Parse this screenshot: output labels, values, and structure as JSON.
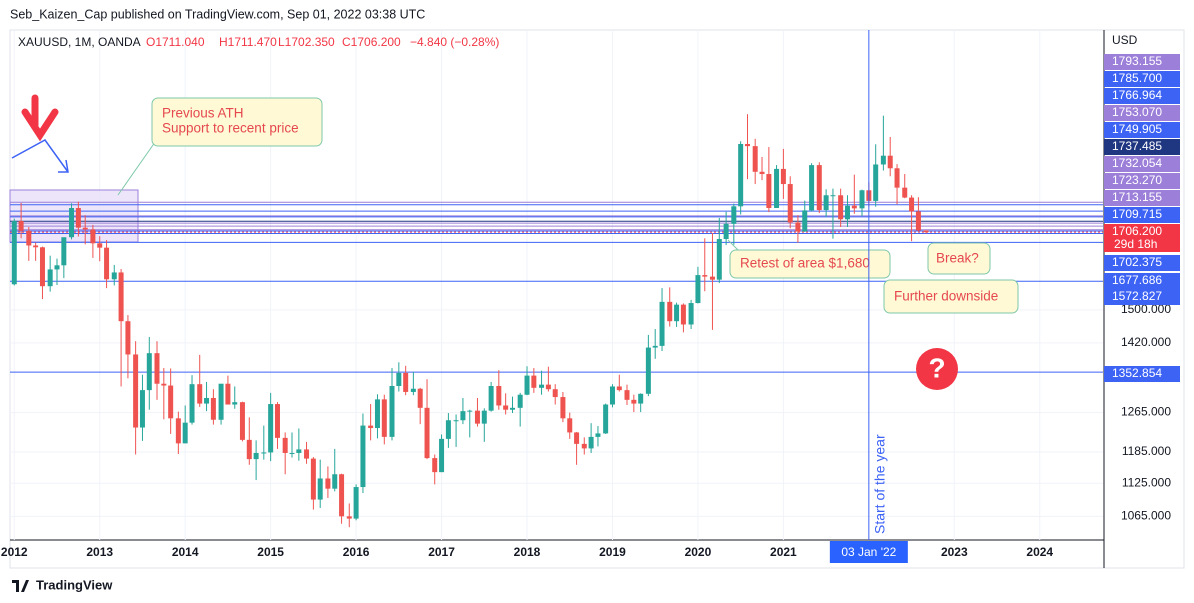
{
  "chart_data": {
    "type": "candlestick",
    "published": "Seb_Kaizen_Cap published on TradingView.com, Sep 01, 2022 03:38 UTC",
    "symbol": "XAUUSD, 1M, OANDA",
    "ohlc_legend": [
      "O1711.040",
      "H1711.470",
      "L1702.350",
      "C1706.200",
      "−4.840 (−0.28%)"
    ],
    "currency": "USD",
    "log_scale": true,
    "grid": true,
    "up_color": "#26a69a",
    "down_color": "#ef5350",
    "x": [
      2012.0,
      2012.08,
      2012.17,
      2012.25,
      2012.33,
      2012.42,
      2012.5,
      2012.58,
      2012.67,
      2012.75,
      2012.83,
      2012.92,
      2013.0,
      2013.08,
      2013.17,
      2013.25,
      2013.33,
      2013.42,
      2013.5,
      2013.58,
      2013.67,
      2013.75,
      2013.83,
      2013.92,
      2014.0,
      2014.08,
      2014.17,
      2014.25,
      2014.33,
      2014.42,
      2014.5,
      2014.58,
      2014.67,
      2014.75,
      2014.83,
      2014.92,
      2015.0,
      2015.08,
      2015.17,
      2015.25,
      2015.33,
      2015.42,
      2015.5,
      2015.58,
      2015.67,
      2015.75,
      2015.83,
      2015.92,
      2016.0,
      2016.08,
      2016.17,
      2016.25,
      2016.33,
      2016.42,
      2016.5,
      2016.58,
      2016.67,
      2016.75,
      2016.83,
      2016.92,
      2017.0,
      2017.08,
      2017.17,
      2017.25,
      2017.33,
      2017.42,
      2017.5,
      2017.58,
      2017.67,
      2017.75,
      2017.83,
      2017.92,
      2018.0,
      2018.08,
      2018.17,
      2018.25,
      2018.33,
      2018.42,
      2018.5,
      2018.58,
      2018.67,
      2018.75,
      2018.83,
      2018.92,
      2019.0,
      2019.08,
      2019.17,
      2019.25,
      2019.33,
      2019.42,
      2019.5,
      2019.58,
      2019.67,
      2019.75,
      2019.83,
      2019.92,
      2020.0,
      2020.08,
      2020.17,
      2020.25,
      2020.33,
      2020.42,
      2020.5,
      2020.58,
      2020.67,
      2020.75,
      2020.83,
      2020.92,
      2021.0,
      2021.08,
      2021.17,
      2021.25,
      2021.33,
      2021.42,
      2021.5,
      2021.58,
      2021.67,
      2021.75,
      2021.83,
      2021.92,
      2022.0,
      2022.08,
      2022.17,
      2022.25,
      2022.33,
      2022.42,
      2022.5,
      2022.58,
      2022.67
    ],
    "open": [
      1565,
      1738,
      1710,
      1669,
      1664,
      1560,
      1604,
      1615,
      1692,
      1776,
      1719,
      1714,
      1675,
      1663,
      1578,
      1596,
      1472,
      1393,
      1234,
      1313,
      1396,
      1327,
      1323,
      1253,
      1202,
      1244,
      1326,
      1284,
      1296,
      1250,
      1327,
      1282,
      1287,
      1209,
      1171,
      1183,
      1184,
      1283,
      1213,
      1183,
      1183,
      1190,
      1172,
      1095,
      1134,
      1115,
      1142,
      1065,
      1061,
      1118,
      1238,
      1233,
      1293,
      1215,
      1322,
      1351,
      1309,
      1316,
      1275,
      1173,
      1146,
      1211,
      1249,
      1249,
      1268,
      1269,
      1242,
      1269,
      1322,
      1280,
      1271,
      1275,
      1303,
      1345,
      1318,
      1325,
      1315,
      1298,
      1253,
      1224,
      1201,
      1192,
      1215,
      1222,
      1282,
      1321,
      1313,
      1292,
      1284,
      1305,
      1409,
      1413,
      1520,
      1472,
      1513,
      1464,
      1517,
      1589,
      1585,
      1577,
      1687,
      1730,
      1781,
      1975,
      1968,
      1886,
      1879,
      1776,
      1895,
      1848,
      1734,
      1708,
      1769,
      1907,
      1770,
      1814,
      1814,
      1743,
      1783,
      1775,
      1829,
      1797,
      1909,
      1937,
      1897,
      1837,
      1807,
      1766,
      1711.04
    ],
    "high": [
      1745,
      1791,
      1721,
      1677,
      1666,
      1641,
      1633,
      1691,
      1790,
      1795,
      1755,
      1727,
      1695,
      1684,
      1616,
      1605,
      1487,
      1424,
      1347,
      1434,
      1424,
      1362,
      1361,
      1267,
      1280,
      1346,
      1392,
      1331,
      1315,
      1325,
      1345,
      1321,
      1288,
      1255,
      1208,
      1238,
      1307,
      1287,
      1224,
      1224,
      1232,
      1205,
      1175,
      1170,
      1157,
      1191,
      1143,
      1088,
      1123,
      1263,
      1283,
      1304,
      1303,
      1362,
      1375,
      1367,
      1353,
      1318,
      1337,
      1180,
      1220,
      1264,
      1261,
      1296,
      1271,
      1296,
      1274,
      1331,
      1357,
      1306,
      1299,
      1307,
      1366,
      1362,
      1356,
      1365,
      1326,
      1309,
      1265,
      1225,
      1214,
      1243,
      1237,
      1284,
      1326,
      1347,
      1325,
      1303,
      1306,
      1439,
      1453,
      1555,
      1557,
      1518,
      1516,
      1525,
      1611,
      1689,
      1704,
      1747,
      1765,
      1789,
      1984,
      2075,
      1992,
      1933,
      1965,
      1907,
      1959,
      1872,
      1755,
      1798,
      1913,
      1916,
      1832,
      1834,
      1834,
      1814,
      1877,
      1831,
      1853,
      1974,
      2070,
      1998,
      1910,
      1879,
      1814,
      1808,
      1711.47
    ],
    "low": [
      1562,
      1689,
      1627,
      1627,
      1527,
      1546,
      1563,
      1581,
      1686,
      1694,
      1672,
      1635,
      1626,
      1555,
      1562,
      1321,
      1339,
      1180,
      1207,
      1271,
      1292,
      1251,
      1221,
      1181,
      1202,
      1240,
      1277,
      1268,
      1240,
      1240,
      1282,
      1273,
      1206,
      1160,
      1131,
      1170,
      1167,
      1191,
      1142,
      1174,
      1168,
      1162,
      1077,
      1080,
      1098,
      1110,
      1052,
      1046,
      1058,
      1107,
      1208,
      1212,
      1200,
      1208,
      1310,
      1302,
      1302,
      1241,
      1171,
      1123,
      1146,
      1193,
      1195,
      1241,
      1214,
      1236,
      1205,
      1267,
      1271,
      1261,
      1264,
      1236,
      1302,
      1307,
      1303,
      1310,
      1282,
      1245,
      1211,
      1160,
      1180,
      1183,
      1196,
      1221,
      1276,
      1310,
      1281,
      1266,
      1266,
      1300,
      1383,
      1401,
      1459,
      1458,
      1445,
      1453,
      1516,
      1547,
      1451,
      1568,
      1670,
      1671,
      1757,
      1863,
      1848,
      1860,
      1764,
      1776,
      1803,
      1717,
      1677,
      1707,
      1766,
      1761,
      1750,
      1688,
      1721,
      1721,
      1759,
      1753,
      1780,
      1780,
      1890,
      1872,
      1787,
      1805,
      1681,
      1709,
      1702.35
    ],
    "close": [
      1738,
      1710,
      1669,
      1664,
      1560,
      1604,
      1615,
      1692,
      1776,
      1719,
      1714,
      1675,
      1663,
      1578,
      1596,
      1472,
      1393,
      1234,
      1313,
      1396,
      1327,
      1323,
      1253,
      1202,
      1244,
      1326,
      1284,
      1296,
      1250,
      1327,
      1282,
      1287,
      1209,
      1171,
      1183,
      1184,
      1283,
      1213,
      1183,
      1183,
      1190,
      1172,
      1095,
      1134,
      1115,
      1142,
      1065,
      1061,
      1118,
      1238,
      1233,
      1293,
      1215,
      1322,
      1351,
      1309,
      1316,
      1275,
      1173,
      1146,
      1211,
      1249,
      1249,
      1268,
      1269,
      1242,
      1269,
      1322,
      1280,
      1271,
      1275,
      1303,
      1345,
      1318,
      1325,
      1315,
      1298,
      1253,
      1224,
      1201,
      1192,
      1215,
      1222,
      1282,
      1321,
      1313,
      1292,
      1284,
      1305,
      1409,
      1413,
      1520,
      1472,
      1513,
      1464,
      1517,
      1589,
      1585,
      1577,
      1687,
      1730,
      1781,
      1975,
      1968,
      1886,
      1879,
      1776,
      1895,
      1848,
      1734,
      1708,
      1769,
      1907,
      1770,
      1814,
      1814,
      1743,
      1783,
      1775,
      1829,
      1797,
      1909,
      1937,
      1897,
      1837,
      1807,
      1766,
      1711,
      1706.2
    ],
    "xlim": [
      2011.95,
      2024.74
    ],
    "xticks": [
      2012,
      2013,
      2014,
      2015,
      2016,
      2017,
      2018,
      2019,
      2020,
      2021,
      2023,
      2024
    ],
    "ylim": [
      1024,
      2386
    ],
    "yticks": [
      {
        "value": 1065,
        "label": "1065.000"
      },
      {
        "value": 1125,
        "label": "1125.000"
      },
      {
        "value": 1185,
        "label": "1185.000"
      },
      {
        "value": 1265,
        "label": "1265.000"
      },
      {
        "value": 1420,
        "label": "1420.000"
      },
      {
        "value": 1500,
        "label": "1500.000"
      }
    ],
    "price_lines": [
      {
        "value": 1793.155,
        "label": "1793.155",
        "color": "#9c7fd8"
      },
      {
        "value": 1785.7,
        "label": "1785.700",
        "color": "#3d63f5"
      },
      {
        "value": 1766.964,
        "label": "1766.964",
        "color": "#3d63f5"
      },
      {
        "value": 1753.07,
        "label": "1753.070",
        "color": "#9c7fd8"
      },
      {
        "value": 1749.905,
        "label": "1749.905",
        "color": "#3d63f5"
      },
      {
        "value": 1737.485,
        "label": "1737.485",
        "color": "#1f3680"
      },
      {
        "value": 1732.054,
        "label": "1732.054",
        "color": "#9c7fd8"
      },
      {
        "value": 1723.27,
        "label": "1723.270",
        "color": "#9c7fd8"
      },
      {
        "value": 1713.155,
        "label": "1713.155",
        "color": "#9c7fd8"
      },
      {
        "value": 1709.715,
        "label": "1709.715",
        "color": "#3d63f5"
      },
      {
        "value": 1706.2,
        "label": "1706.200",
        "color": "#f23645"
      },
      {
        "value": 1702.375,
        "label": "1702.375",
        "color": "#3d63f5"
      },
      {
        "value": 1677.686,
        "label": "1677.686",
        "color": "#3d63f5"
      },
      {
        "value": 1572.827,
        "label": "1572.827",
        "color": "#3d63f5"
      },
      {
        "value": 1352.854,
        "label": "1352.854",
        "color": "#3d63f5"
      }
    ],
    "countdown": "29d 18h",
    "annotations": {
      "ath": [
        "Previous ATH",
        "Support to recent price"
      ],
      "retest": "Retest of area $1,680",
      "break": "Break?",
      "downside": "Further downside"
    },
    "vertical_line": {
      "x": 2022.0,
      "label": "Start of the year",
      "date_label": "03 Jan '22"
    },
    "question_icon": "?",
    "footer": "TradingView"
  }
}
